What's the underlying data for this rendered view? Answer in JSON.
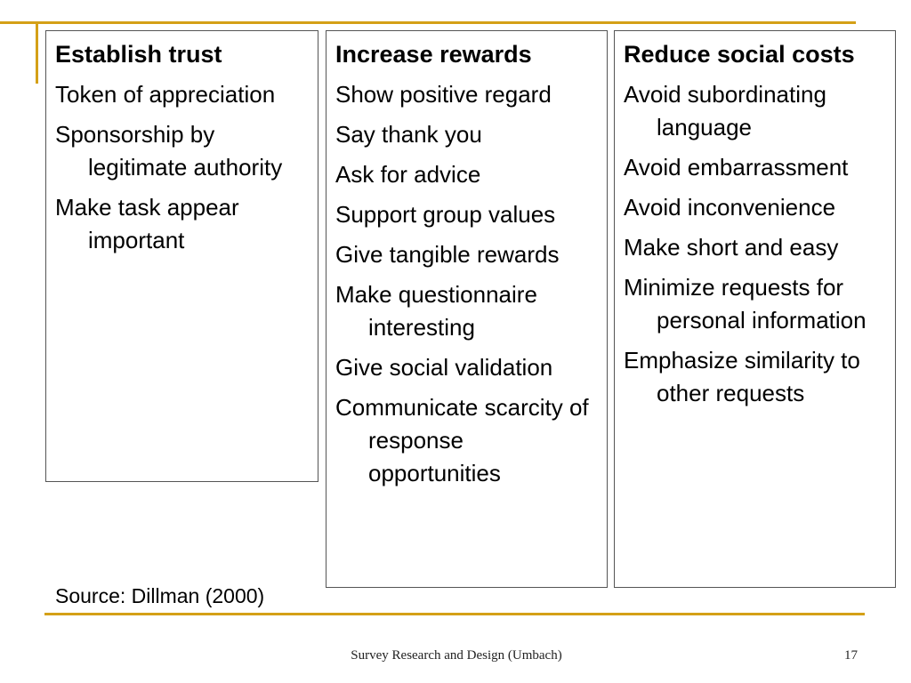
{
  "slide": {
    "columns": [
      {
        "title": "Establish trust",
        "items": [
          "Token of appreciation",
          "Sponsorship by legitimate authority",
          "Make task appear important"
        ]
      },
      {
        "title": "Increase rewards",
        "items": [
          "Show positive regard",
          "Say thank you",
          "Ask for advice",
          "Support group values",
          "Give tangible rewards",
          "Make questionnaire interesting",
          "Give social validation",
          "Communicate scarcity of response opportunities"
        ]
      },
      {
        "title": "Reduce social costs",
        "items": [
          "Avoid subordinating language",
          "Avoid embarrassment",
          "Avoid inconvenience",
          "Make short and easy",
          "Minimize requests for personal information",
          "Emphasize similarity to other requests"
        ]
      }
    ],
    "source": "Source: Dillman (2000)"
  },
  "footer": {
    "title": "Survey Research and Design (Umbach)",
    "page_number": "17"
  },
  "colors": {
    "accent": "#d4a017",
    "border": "#555555"
  }
}
